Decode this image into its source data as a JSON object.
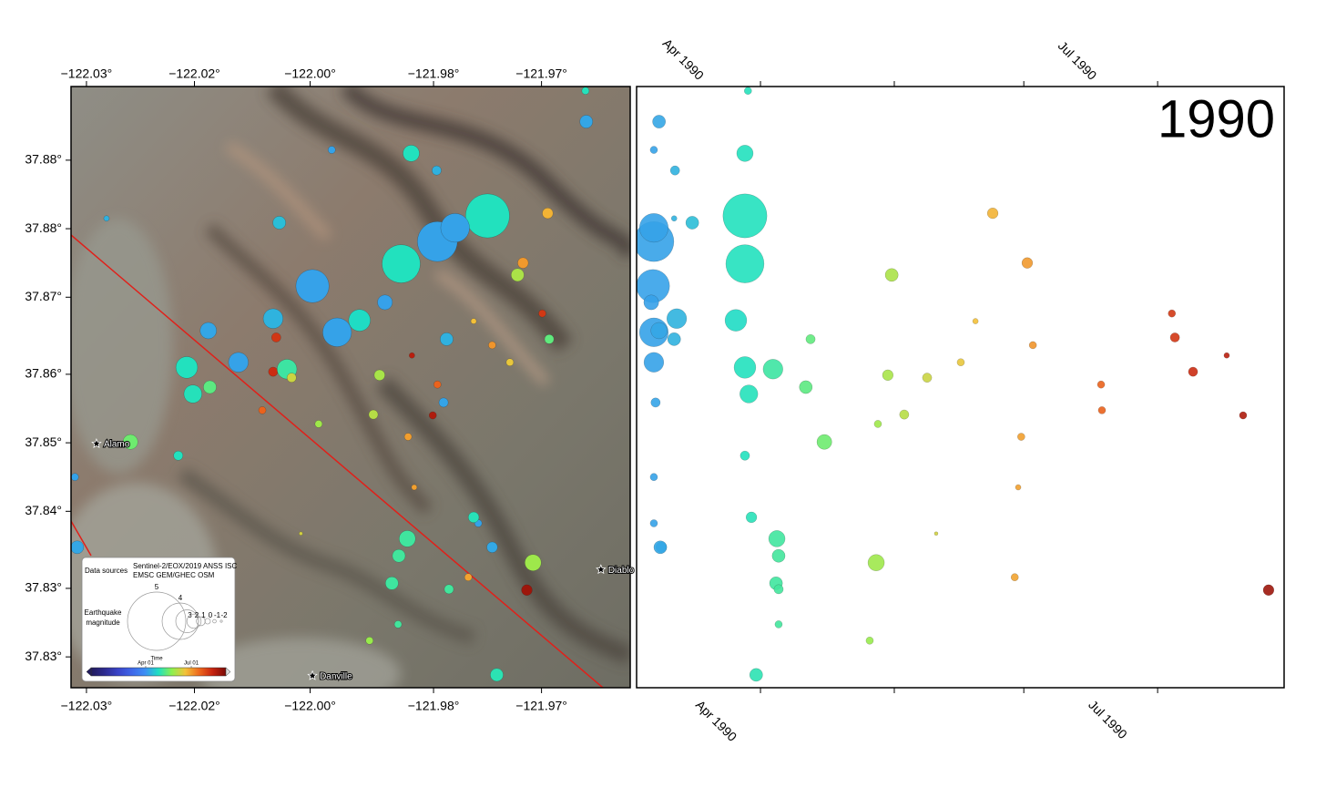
{
  "chart_data": [
    {
      "type": "map",
      "xlim": [
        -122.031,
        -121.9585
      ],
      "ylim": [
        37.8224,
        37.8926
      ],
      "xticks": [
        {
          "value": -122.029,
          "label": "−122.03°"
        },
        {
          "value": -122.015,
          "label": "−122.02°"
        },
        {
          "value": -122.0,
          "label": "−122.00°"
        },
        {
          "value": -121.984,
          "label": "−121.98°"
        },
        {
          "value": -121.97,
          "label": "−121.97°"
        }
      ],
      "yticks": [
        {
          "value": 37.884,
          "label": "37.88°"
        },
        {
          "value": 37.876,
          "label": "37.88°"
        },
        {
          "value": 37.868,
          "label": "37.87°"
        },
        {
          "value": 37.859,
          "label": "37.86°"
        },
        {
          "value": 37.851,
          "label": "37.85°"
        },
        {
          "value": 37.843,
          "label": "37.84°"
        },
        {
          "value": 37.834,
          "label": "37.83°"
        },
        {
          "value": 37.826,
          "label": "37.83°"
        }
      ],
      "x": [
        -121.9835,
        -121.977,
        -121.9882,
        -121.9997,
        -121.9965,
        -121.9812,
        -122.016,
        -122.0093,
        -122.0152,
        -121.9869,
        -121.9642,
        -121.9692,
        -121.9724,
        -121.9731,
        -121.969,
        -122.0233,
        -121.9874,
        -121.9711,
        -121.9719,
        -121.9758,
        -121.9764,
        -122.0048,
        -122.0132,
        -122.0044,
        -122.0062,
        -121.9903,
        -121.991,
        -121.9823,
        -121.9873,
        -121.9782,
        -121.9885,
        -121.9894,
        -121.982,
        -122.0302,
        -122.0305,
        -121.9643,
        -122.0264,
        -122.0048,
        -121.9795,
        -121.9841,
        -121.9868,
        -121.9699,
        -121.9835,
        -121.9764,
        -121.9741,
        -121.9788,
        -121.9918,
        -121.9989,
        -122.003,
        -121.9936,
        -121.9923,
        -121.9886,
        -121.9827,
        -122.0171,
        -121.9788,
        -122.004,
        -121.9836,
        -121.9972,
        -122.013,
        -122.0024,
        -122.0012,
        -121.9865
      ],
      "y": [
        37.8745,
        37.8775,
        37.8719,
        37.8693,
        37.8639,
        37.8761,
        37.8598,
        37.8604,
        37.8567,
        37.8848,
        37.8885,
        37.8778,
        37.872,
        37.8706,
        37.8631,
        37.8511,
        37.8398,
        37.837,
        37.8338,
        37.8239,
        37.8388,
        37.8655,
        37.8641,
        37.8633,
        37.8548,
        37.8674,
        37.8589,
        37.8631,
        37.8517,
        37.8416,
        37.8378,
        37.8346,
        37.8339,
        37.8388,
        37.847,
        37.8921,
        37.8772,
        37.8593,
        37.8353,
        37.8542,
        37.8612,
        37.8661,
        37.8578,
        37.8624,
        37.8604,
        37.8652,
        37.8543,
        37.8532,
        37.8596,
        37.8653,
        37.8279,
        37.8298,
        37.8557,
        37.8495,
        37.8423,
        37.8767,
        37.8828,
        37.8852,
        37.8575,
        37.8586,
        37.8404,
        37.8458
      ],
      "sizes": [
        4.2,
        4.4,
        4.1,
        3.8,
        3.5,
        3.5,
        2.9,
        2.7,
        2.5,
        2.3,
        1.8,
        1.4,
        1.4,
        1.8,
        1.1,
        2.1,
        2.3,
        2.3,
        1.4,
        1.8,
        1.4,
        2.7,
        2.3,
        1.1,
        0.6,
        2.1,
        1.4,
        1.8,
        0.6,
        0.6,
        1.8,
        1.8,
        1.1,
        1.8,
        0.6,
        0.6,
        0.0,
        1.1,
        0.6,
        0.6,
        0.0,
        0.6,
        0.6,
        0.6,
        0.6,
        0.0,
        1.1,
        0.6,
        2.7,
        2.9,
        0.6,
        0.6,
        1.1,
        1.1,
        1.4,
        1.8,
        1.1,
        0.6,
        1.8,
        1.1,
        -0.9,
        0.0
      ],
      "color_values": [
        96.3,
        117.4,
        117.4,
        96.1,
        96.3,
        96.3,
        117.4,
        96.3,
        118.3,
        117.4,
        97.5,
        174.8,
        182.8,
        151.4,
        132.6,
        135.8,
        124.8,
        147.8,
        238.7,
        120.0,
        98.0,
        101.6,
        97.5,
        217.0,
        200.1,
        95.7,
        150.5,
        101.0,
        181.4,
        96.3,
        125.2,
        124.6,
        125.2,
        97.8,
        96.3,
        118.1,
        101.0,
        221.2,
        179.9,
        232.8,
        229.0,
        216.3,
        199.9,
        184.1,
        167.4,
        170.8,
        154.3,
        148.2,
        123.9,
        115.3,
        146.3,
        125.2,
        96.7,
        117.4,
        118.9,
        105.2,
        101.2,
        96.3,
        131.5,
        159.6,
        161.7,
        180.7
      ],
      "colormap": [
        "#221c5c",
        "#2d2a8f",
        "#3a44c8",
        "#3f66e8",
        "#3d8ef5",
        "#1ee0c2",
        "#8df04e",
        "#f3c23a",
        "#ee6a1e",
        "#c72410",
        "#7a0a06"
      ],
      "clim": [
        -18,
        251
      ],
      "places": [
        {
          "name": "Alamo",
          "x": -122.0277,
          "y": 37.8509
        },
        {
          "name": "Diablo",
          "x": -121.9623,
          "y": 37.8362
        },
        {
          "name": "Danville",
          "x": -121.9997,
          "y": 37.8238
        }
      ],
      "legend": {
        "data_sources_label": "Data sources",
        "data_sources": [
          "Sentinel-2/EOX/2019 ANSS ISC",
          "EMSC GEM/GHEC OSM"
        ],
        "size_title": [
          "Earthquake",
          "magnitude"
        ],
        "sizes": [
          5,
          4,
          3,
          2,
          1,
          0,
          -1,
          -2
        ],
        "colorbar_title": "Time",
        "colorbar_ticks": [
          {
            "value": 91,
            "label": "Apr 01"
          },
          {
            "value": 182,
            "label": "Jul 01"
          }
        ]
      }
    },
    {
      "type": "scatter",
      "title": "1990",
      "xlim": [
        92.3,
        242.3
      ],
      "ylim": [
        37.8224,
        37.8926
      ],
      "xticks": [
        121,
        152,
        182,
        213
      ],
      "xtick_labels": [
        {
          "value": 105.5,
          "label": "Apr 1990"
        },
        {
          "value": 196.5,
          "label": "Jul 1990"
        }
      ],
      "x": [
        96.3,
        117.4,
        117.4,
        96.1,
        96.3,
        96.3,
        117.4,
        96.3,
        118.3,
        117.4,
        97.5,
        174.8,
        182.8,
        151.4,
        132.6,
        135.8,
        124.8,
        147.8,
        238.7,
        120.0,
        98.0,
        101.6,
        97.5,
        217.0,
        200.1,
        95.7,
        150.5,
        101.0,
        181.4,
        96.3,
        125.2,
        124.6,
        125.2,
        97.8,
        96.3,
        118.1,
        101.0,
        221.2,
        179.9,
        232.8,
        229.0,
        216.3,
        199.9,
        184.1,
        167.4,
        170.8,
        154.3,
        148.2,
        123.9,
        115.3,
        146.3,
        125.2,
        96.7,
        117.4,
        118.9,
        105.2,
        101.2,
        96.3,
        131.5,
        159.6,
        161.7,
        180.7
      ],
      "y": [
        37.8745,
        37.8775,
        37.8719,
        37.8693,
        37.8639,
        37.8761,
        37.8598,
        37.8604,
        37.8567,
        37.8848,
        37.8885,
        37.8778,
        37.872,
        37.8706,
        37.8631,
        37.8511,
        37.8398,
        37.837,
        37.8338,
        37.8239,
        37.8388,
        37.8655,
        37.8641,
        37.8633,
        37.8548,
        37.8674,
        37.8589,
        37.8631,
        37.8517,
        37.8416,
        37.8378,
        37.8346,
        37.8339,
        37.8388,
        37.847,
        37.8921,
        37.8772,
        37.8593,
        37.8353,
        37.8542,
        37.8612,
        37.8661,
        37.8578,
        37.8624,
        37.8604,
        37.8652,
        37.8543,
        37.8532,
        37.8596,
        37.8653,
        37.8279,
        37.8298,
        37.8557,
        37.8495,
        37.8423,
        37.8767,
        37.8828,
        37.8852,
        37.8575,
        37.8586,
        37.8404,
        37.8458
      ],
      "sizes": [
        4.2,
        4.4,
        4.1,
        3.8,
        3.5,
        3.5,
        2.9,
        2.7,
        2.5,
        2.3,
        1.8,
        1.4,
        1.4,
        1.8,
        1.1,
        2.1,
        2.3,
        2.3,
        1.4,
        1.8,
        1.4,
        2.7,
        2.3,
        1.1,
        0.6,
        2.1,
        1.4,
        1.8,
        0.6,
        0.6,
        1.8,
        1.8,
        1.1,
        1.8,
        0.6,
        0.6,
        0.0,
        1.1,
        0.6,
        0.6,
        0.0,
        0.6,
        0.6,
        0.6,
        0.6,
        0.0,
        1.1,
        0.6,
        2.7,
        2.9,
        0.6,
        0.6,
        1.1,
        1.1,
        1.4,
        1.8,
        1.1,
        0.6,
        1.8,
        1.1,
        -0.9,
        0.0
      ]
    }
  ]
}
